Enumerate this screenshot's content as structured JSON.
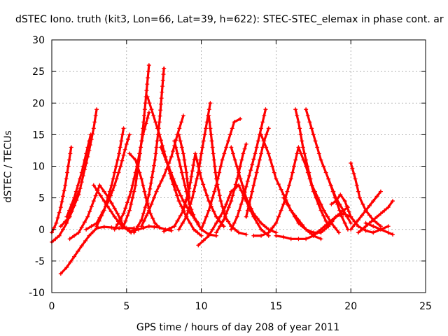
{
  "chart_data": {
    "type": "line",
    "title": "dSTEC Iono. truth (kit3, Lon=66, Lat=39, h=622): STEC-STEC_elemax in phase cont. ar",
    "xlabel": "GPS time / hours of day 208 of year 2011",
    "ylabel": "dSTEC  / TECUs",
    "xlim": [
      0,
      25
    ],
    "ylim": [
      -10,
      30
    ],
    "xticks": [
      0,
      5,
      10,
      15,
      20,
      25
    ],
    "yticks": [
      -10,
      -5,
      0,
      5,
      10,
      15,
      20,
      25,
      30
    ],
    "xtick_labels": [
      "0",
      "5",
      "10",
      "15",
      "20",
      "25"
    ],
    "ytick_labels": [
      "-10",
      "-5",
      "0",
      "5",
      "10",
      "15",
      "20",
      "25",
      "30"
    ],
    "grid": true,
    "legend": "none",
    "marker": "+",
    "color": "#ff0000",
    "series": [
      {
        "x": [
          0.6,
          1.0,
          1.5,
          2.0,
          2.5,
          3.0,
          3.5,
          4.5,
          5.5
        ],
        "values": [
          -7,
          -6,
          -4.3,
          -2.6,
          -1,
          0.2,
          0.4,
          0.2,
          0.2
        ]
      },
      {
        "x": [
          0.0,
          0.3,
          0.6,
          0.9,
          1.1,
          1.3
        ],
        "values": [
          -0.5,
          1.0,
          3.5,
          7.0,
          10.0,
          13.0
        ]
      },
      {
        "x": [
          0.0,
          0.5,
          1.0,
          1.4,
          1.8
        ],
        "values": [
          -2.0,
          -1.0,
          1.0,
          3.5,
          6.0
        ]
      },
      {
        "x": [
          0.6,
          1.2,
          1.8,
          2.2,
          2.5,
          2.8,
          3.0
        ],
        "values": [
          0.5,
          2.0,
          5.5,
          9.5,
          12.5,
          16.0,
          19.0
        ]
      },
      {
        "x": [
          1.0,
          1.5,
          2.0,
          2.4,
          2.6
        ],
        "values": [
          2.0,
          5.0,
          9.0,
          13.0,
          15.0
        ]
      },
      {
        "x": [
          1.2,
          1.8,
          2.4,
          2.8,
          3.2,
          3.8,
          4.4,
          4.8,
          5.3
        ],
        "values": [
          -1.5,
          -0.5,
          2.0,
          4.5,
          7.0,
          5.0,
          2.5,
          0.5,
          -0.5
        ]
      },
      {
        "x": [
          2.8,
          3.5,
          4.2,
          4.7,
          5.2,
          5.8,
          6.5,
          7.2
        ],
        "values": [
          7.0,
          4.5,
          2.0,
          0.5,
          -0.3,
          0.0,
          0.5,
          0.3
        ]
      },
      {
        "x": [
          3.0,
          3.5,
          4.0,
          4.5,
          4.8
        ],
        "values": [
          0.5,
          3.0,
          7.0,
          12.0,
          16.0
        ]
      },
      {
        "x": [
          2.3,
          3.0,
          3.8,
          4.2,
          4.6,
          5.0,
          5.2
        ],
        "values": [
          0.0,
          1.0,
          4.5,
          7.0,
          10.0,
          13.5,
          15.0
        ]
      },
      {
        "x": [
          4.2,
          4.8,
          5.3,
          5.7,
          6.1,
          6.5
        ],
        "values": [
          0.0,
          2.5,
          6.0,
          10.0,
          15.0,
          18.5
        ]
      },
      {
        "x": [
          5.2,
          5.6,
          6.0,
          6.3,
          6.6,
          6.9,
          7.2,
          7.6,
          8.0
        ],
        "values": [
          12.0,
          11.0,
          8.0,
          5.0,
          2.5,
          1.0,
          0.3,
          0.0,
          -0.2
        ]
      },
      {
        "x": [
          4.8,
          5.2,
          5.6,
          5.9,
          6.1,
          6.3,
          6.5
        ],
        "values": [
          0.5,
          3.0,
          7.0,
          12.0,
          16.0,
          21.0,
          26.0
        ]
      },
      {
        "x": [
          6.4,
          6.8,
          7.2,
          7.6,
          8.0,
          8.5,
          9.0,
          9.5,
          10.0
        ],
        "values": [
          21.0,
          18.0,
          15.0,
          11.5,
          8.0,
          4.5,
          2.0,
          0.0,
          -1.0
        ]
      },
      {
        "x": [
          5.5,
          6.0,
          6.5,
          6.9,
          7.2,
          7.5
        ],
        "values": [
          -0.5,
          1.5,
          5.5,
          11.0,
          17.0,
          25.5
        ]
      },
      {
        "x": [
          7.3,
          7.8,
          8.3,
          8.8,
          9.3,
          9.8
        ],
        "values": [
          13.0,
          10.0,
          7.0,
          4.5,
          2.5,
          1.0
        ]
      },
      {
        "x": [
          6.0,
          6.5,
          7.0,
          7.5,
          8.0,
          8.4,
          8.8
        ],
        "values": [
          0.5,
          3.0,
          6.0,
          8.5,
          11.5,
          15.0,
          18.0
        ]
      },
      {
        "x": [
          7.5,
          8.2,
          8.8,
          9.2,
          9.6,
          10.0,
          10.5,
          11.0,
          11.5
        ],
        "values": [
          -0.3,
          0.5,
          3.0,
          6.5,
          12.0,
          8.0,
          4.5,
          2.0,
          0.5
        ]
      },
      {
        "x": [
          8.5,
          8.8,
          9.0,
          9.2
        ],
        "values": [
          15.0,
          12.0,
          9.0,
          5.0
        ]
      },
      {
        "x": [
          8.2,
          8.8,
          9.2,
          9.6,
          10.0,
          10.5,
          11.0
        ],
        "values": [
          14.0,
          8.0,
          4.0,
          1.5,
          0.0,
          -0.8,
          -1.0
        ]
      },
      {
        "x": [
          8.5,
          9.0,
          9.4,
          9.8,
          10.0,
          10.3,
          10.6
        ],
        "values": [
          0.0,
          2.0,
          5.0,
          9.0,
          12.0,
          16.0,
          20.0
        ]
      },
      {
        "x": [
          9.8,
          10.5,
          11.0,
          11.5,
          12.0,
          12.5,
          13.0,
          13.5,
          14.0,
          14.5
        ],
        "values": [
          -2.5,
          -1.0,
          1.0,
          3.0,
          6.0,
          7.0,
          4.5,
          2.0,
          0.0,
          -1.0
        ]
      },
      {
        "x": [
          10.5,
          10.8,
          11.0,
          11.3,
          11.6,
          12.0,
          12.5,
          13.0
        ],
        "values": [
          18.0,
          12.0,
          8.0,
          4.5,
          2.0,
          0.5,
          -0.5,
          -0.8
        ]
      },
      {
        "x": [
          10.0,
          10.5,
          11.0,
          11.4,
          11.8,
          12.2,
          12.6
        ],
        "values": [
          0.0,
          3.0,
          7.0,
          11.0,
          14.0,
          17.0,
          17.5
        ]
      },
      {
        "x": [
          11.0,
          11.5,
          12.0,
          12.4,
          12.8,
          13.0
        ],
        "values": [
          -0.5,
          1.5,
          4.5,
          8.0,
          12.0,
          13.5
        ]
      },
      {
        "x": [
          12.0,
          12.5,
          13.0,
          13.5,
          14.0,
          14.5,
          15.0
        ],
        "values": [
          13.0,
          9.0,
          5.0,
          2.5,
          1.0,
          0.0,
          -0.5
        ]
      },
      {
        "x": [
          12.0,
          12.4,
          12.8,
          13.2,
          13.6,
          14.0,
          14.3
        ],
        "values": [
          0.0,
          2.0,
          5.0,
          8.5,
          12.0,
          16.0,
          19.0
        ]
      },
      {
        "x": [
          13.0,
          13.3,
          13.6,
          13.9,
          14.2,
          14.5
        ],
        "values": [
          2.0,
          5.0,
          8.0,
          11.0,
          14.0,
          16.0
        ]
      },
      {
        "x": [
          14.0,
          14.5,
          15.0,
          15.5,
          16.0,
          16.5,
          17.0,
          17.5,
          18.0
        ],
        "values": [
          15.0,
          12.0,
          8.0,
          5.5,
          3.0,
          1.5,
          0.0,
          -1.0,
          -1.5
        ]
      },
      {
        "x": [
          13.5,
          14.0,
          14.5,
          15.0,
          15.5,
          16.0,
          16.5,
          17.0,
          17.5,
          18.0,
          18.5
        ],
        "values": [
          -1.0,
          -1.0,
          -0.5,
          1.0,
          4.0,
          8.0,
          13.0,
          10.0,
          6.0,
          3.0,
          0.5
        ]
      },
      {
        "x": [
          15.5,
          16.0,
          16.5,
          17.0,
          17.5,
          18.0,
          18.5,
          19.0,
          19.5,
          19.8
        ],
        "values": [
          5.0,
          3.0,
          1.0,
          0.0,
          -0.5,
          -0.5,
          0.5,
          2.0,
          3.0,
          3.5
        ]
      },
      {
        "x": [
          16.3,
          16.5,
          16.8,
          17.1,
          17.4,
          17.8,
          18.2,
          18.7,
          19.2
        ],
        "values": [
          19.0,
          17.0,
          13.0,
          10.0,
          7.0,
          5.0,
          3.0,
          1.0,
          -0.5
        ]
      },
      {
        "x": [
          15.0,
          15.5,
          16.0,
          16.5,
          17.0,
          17.5,
          18.0,
          18.5,
          19.0,
          19.5,
          20.0
        ],
        "values": [
          -1.0,
          -1.2,
          -1.5,
          -1.5,
          -1.5,
          -1.0,
          0.0,
          1.0,
          2.0,
          2.5,
          2.0
        ]
      },
      {
        "x": [
          17.0,
          17.5,
          18.0,
          18.5,
          19.0,
          19.5,
          20.0
        ],
        "values": [
          19.0,
          15.0,
          11.0,
          8.0,
          5.0,
          3.0,
          1.0
        ]
      },
      {
        "x": [
          18.5,
          18.8,
          19.1,
          19.4,
          19.8
        ],
        "values": [
          8.0,
          6.0,
          4.0,
          2.0,
          0.0
        ]
      },
      {
        "x": [
          18.7,
          19.0,
          19.3,
          19.6,
          20.0,
          20.5,
          21.0,
          21.5,
          22.0,
          22.5
        ],
        "values": [
          4.0,
          4.5,
          5.5,
          4.5,
          2.0,
          0.5,
          -0.2,
          -0.5,
          0.0,
          0.5
        ]
      },
      {
        "x": [
          20.0,
          20.3,
          20.6,
          21.0,
          21.5,
          22.0
        ],
        "values": [
          10.5,
          8.0,
          5.0,
          3.0,
          1.5,
          0.5
        ]
      },
      {
        "x": [
          20.0,
          20.5,
          21.0,
          21.5,
          22.0
        ],
        "values": [
          0.0,
          1.5,
          3.0,
          4.5,
          6.0
        ]
      },
      {
        "x": [
          20.5,
          21.0,
          21.5,
          22.0,
          22.5,
          22.8
        ],
        "values": [
          -0.5,
          0.5,
          1.5,
          2.5,
          3.5,
          4.5
        ]
      },
      {
        "x": [
          21.0,
          21.5,
          22.0,
          22.5,
          22.8
        ],
        "values": [
          1.0,
          0.5,
          0.0,
          -0.5,
          -0.8
        ]
      }
    ]
  }
}
